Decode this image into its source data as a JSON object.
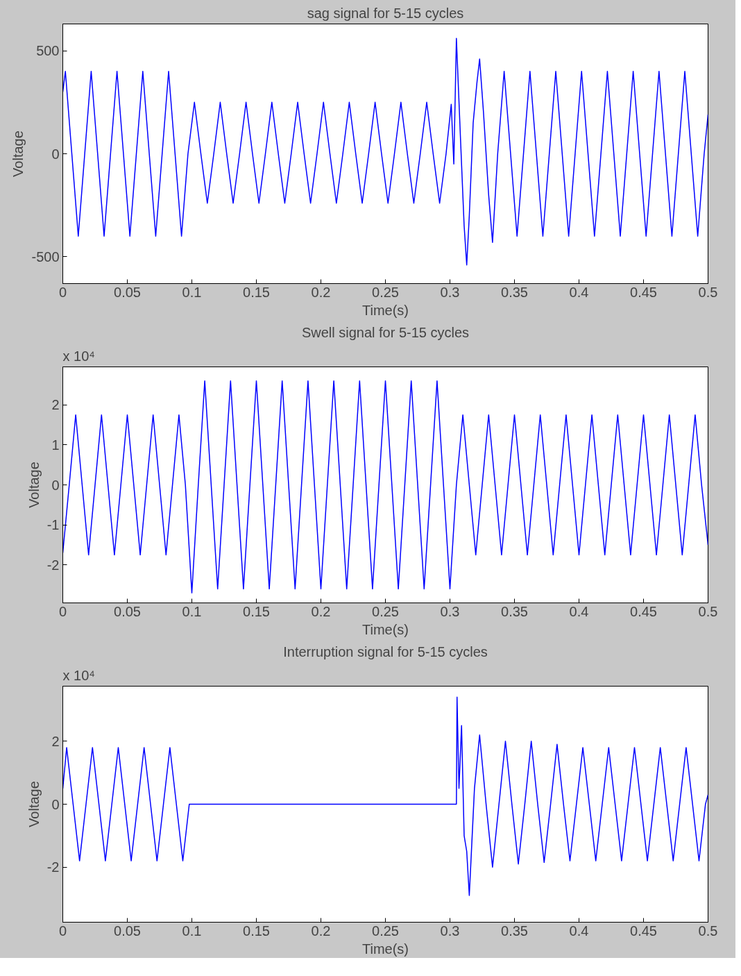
{
  "chart_data": [
    {
      "type": "line",
      "title": "sag signal for 5-15 cycles",
      "xlabel": "Time(s)",
      "ylabel": "Voltage",
      "grid": false,
      "xlim": [
        0,
        0.5
      ],
      "xticks": [
        0,
        0.05,
        0.1,
        0.15,
        0.2,
        0.25,
        0.3,
        0.35,
        0.4,
        0.45,
        0.5
      ],
      "ylim": [
        -630,
        630
      ],
      "yticks": [
        -500,
        0,
        500
      ],
      "x": [
        0,
        0.002,
        0.007,
        0.012,
        0.017,
        0.022,
        0.027,
        0.032,
        0.037,
        0.042,
        0.047,
        0.052,
        0.057,
        0.062,
        0.067,
        0.072,
        0.077,
        0.082,
        0.087,
        0.092,
        0.097,
        0.102,
        0.107,
        0.112,
        0.117,
        0.122,
        0.127,
        0.132,
        0.137,
        0.142,
        0.147,
        0.152,
        0.157,
        0.162,
        0.167,
        0.172,
        0.177,
        0.182,
        0.187,
        0.192,
        0.197,
        0.202,
        0.207,
        0.212,
        0.217,
        0.222,
        0.227,
        0.232,
        0.237,
        0.242,
        0.247,
        0.252,
        0.257,
        0.262,
        0.267,
        0.272,
        0.277,
        0.282,
        0.287,
        0.292,
        0.297,
        0.301,
        0.303,
        0.305,
        0.308,
        0.311,
        0.313,
        0.315,
        0.318,
        0.321,
        0.323,
        0.326,
        0.33,
        0.333,
        0.337,
        0.342,
        0.347,
        0.352,
        0.357,
        0.362,
        0.367,
        0.372,
        0.377,
        0.382,
        0.387,
        0.392,
        0.397,
        0.402,
        0.407,
        0.412,
        0.417,
        0.422,
        0.427,
        0.432,
        0.437,
        0.442,
        0.447,
        0.452,
        0.457,
        0.462,
        0.467,
        0.472,
        0.477,
        0.482,
        0.487,
        0.492,
        0.497,
        0.5
      ],
      "series": [
        {
          "color": "#0000ff",
          "values": [
            300,
            400,
            0,
            -400,
            0,
            400,
            0,
            -400,
            0,
            400,
            0,
            -400,
            0,
            400,
            0,
            -400,
            0,
            400,
            0,
            -400,
            0,
            250,
            0,
            -240,
            0,
            250,
            0,
            -240,
            0,
            250,
            0,
            -240,
            0,
            250,
            0,
            -240,
            0,
            250,
            0,
            -240,
            0,
            250,
            0,
            -240,
            0,
            250,
            0,
            -240,
            0,
            250,
            0,
            -240,
            0,
            250,
            0,
            -240,
            0,
            250,
            0,
            -240,
            0,
            240,
            -50,
            560,
            100,
            -350,
            -540,
            -300,
            150,
            350,
            460,
            200,
            -200,
            -430,
            0,
            400,
            0,
            -400,
            0,
            400,
            0,
            -400,
            0,
            400,
            0,
            -400,
            0,
            400,
            0,
            -400,
            0,
            400,
            0,
            -400,
            0,
            400,
            0,
            -400,
            0,
            400,
            0,
            -400,
            0,
            400,
            0,
            -400,
            0,
            190
          ]
        }
      ]
    },
    {
      "type": "line",
      "title": "Swell signal for 5-15 cycles",
      "xlabel": "Time(s)",
      "ylabel": "Voltage",
      "annotations": [
        "x 10⁴"
      ],
      "grid": false,
      "xlim": [
        0,
        0.5
      ],
      "xticks": [
        0,
        0.05,
        0.1,
        0.15,
        0.2,
        0.25,
        0.3,
        0.35,
        0.4,
        0.45,
        0.5
      ],
      "ylim": [
        -2.95,
        2.95
      ],
      "yticks": [
        -2,
        -1,
        0,
        1,
        2
      ],
      "x": [
        0,
        0.005,
        0.01,
        0.015,
        0.02,
        0.025,
        0.03,
        0.035,
        0.04,
        0.045,
        0.05,
        0.055,
        0.06,
        0.065,
        0.07,
        0.075,
        0.08,
        0.085,
        0.09,
        0.095,
        0.1,
        0.105,
        0.11,
        0.115,
        0.12,
        0.125,
        0.13,
        0.135,
        0.14,
        0.145,
        0.15,
        0.155,
        0.16,
        0.165,
        0.17,
        0.175,
        0.18,
        0.185,
        0.19,
        0.195,
        0.2,
        0.205,
        0.21,
        0.215,
        0.22,
        0.225,
        0.23,
        0.235,
        0.24,
        0.245,
        0.25,
        0.255,
        0.26,
        0.265,
        0.27,
        0.275,
        0.28,
        0.285,
        0.29,
        0.295,
        0.3,
        0.305,
        0.31,
        0.315,
        0.32,
        0.325,
        0.33,
        0.335,
        0.34,
        0.345,
        0.35,
        0.355,
        0.36,
        0.365,
        0.37,
        0.375,
        0.38,
        0.385,
        0.39,
        0.395,
        0.4,
        0.405,
        0.41,
        0.415,
        0.42,
        0.425,
        0.43,
        0.435,
        0.44,
        0.445,
        0.45,
        0.455,
        0.46,
        0.465,
        0.47,
        0.475,
        0.48,
        0.485,
        0.49,
        0.495,
        0.5
      ],
      "series": [
        {
          "color": "#0000ff",
          "values": [
            -1.7,
            0,
            1.75,
            0,
            -1.75,
            0,
            1.75,
            0,
            -1.75,
            0,
            1.75,
            0,
            -1.75,
            0,
            1.75,
            0,
            -1.75,
            0,
            1.75,
            0,
            -2.7,
            0,
            2.6,
            0,
            -2.6,
            0,
            2.6,
            0,
            -2.6,
            0,
            2.6,
            0,
            -2.6,
            0,
            2.6,
            0,
            -2.6,
            0,
            2.6,
            0,
            -2.6,
            0,
            2.6,
            0,
            -2.6,
            0,
            2.6,
            0,
            -2.6,
            0,
            2.6,
            0,
            -2.6,
            0,
            2.6,
            0,
            -2.6,
            0,
            2.6,
            0,
            -2.6,
            0,
            1.75,
            0,
            -1.75,
            0,
            1.75,
            0,
            -1.75,
            0,
            1.75,
            0,
            -1.75,
            0,
            1.75,
            0,
            -1.75,
            0,
            1.75,
            0,
            -1.75,
            0,
            1.75,
            0,
            -1.75,
            0,
            1.75,
            0,
            -1.75,
            0,
            1.75,
            0,
            -1.75,
            0,
            1.75,
            0,
            -1.75,
            0,
            1.75,
            0,
            -1.5
          ]
        }
      ]
    },
    {
      "type": "line",
      "title": "Interruption signal for 5-15 cycles",
      "xlabel": "Time(s)",
      "ylabel": "Voltage",
      "annotations": [
        "x 10⁴"
      ],
      "grid": false,
      "xlim": [
        0,
        0.5
      ],
      "xticks": [
        0,
        0.05,
        0.1,
        0.15,
        0.2,
        0.25,
        0.3,
        0.35,
        0.4,
        0.45,
        0.5
      ],
      "ylim": [
        -3.75,
        3.75
      ],
      "yticks": [
        -2,
        0,
        2
      ],
      "x": [
        0,
        0.003,
        0.008,
        0.013,
        0.018,
        0.023,
        0.028,
        0.033,
        0.038,
        0.043,
        0.048,
        0.053,
        0.058,
        0.063,
        0.068,
        0.073,
        0.078,
        0.083,
        0.088,
        0.093,
        0.098,
        0.305,
        0.3055,
        0.307,
        0.309,
        0.311,
        0.313,
        0.315,
        0.317,
        0.319,
        0.323,
        0.328,
        0.333,
        0.338,
        0.343,
        0.348,
        0.353,
        0.358,
        0.363,
        0.368,
        0.373,
        0.378,
        0.383,
        0.388,
        0.393,
        0.398,
        0.403,
        0.408,
        0.413,
        0.418,
        0.423,
        0.428,
        0.433,
        0.438,
        0.443,
        0.448,
        0.453,
        0.458,
        0.463,
        0.468,
        0.473,
        0.478,
        0.483,
        0.488,
        0.493,
        0.498,
        0.5
      ],
      "series": [
        {
          "color": "#0000ff",
          "values": [
            0.5,
            1.8,
            0,
            -1.8,
            0,
            1.8,
            0,
            -1.8,
            0,
            1.8,
            0,
            -1.8,
            0,
            1.8,
            0,
            -1.8,
            0,
            1.8,
            0,
            -1.8,
            0,
            0,
            3.4,
            0.5,
            2.5,
            -1,
            -1.5,
            -2.9,
            -1.2,
            0.5,
            2.2,
            0,
            -2,
            0,
            2,
            0,
            -1.9,
            0,
            2,
            0,
            -1.85,
            0,
            1.9,
            0,
            -1.8,
            0,
            1.8,
            0,
            -1.8,
            0,
            1.8,
            0,
            -1.8,
            0,
            1.8,
            0,
            -1.8,
            0,
            1.8,
            0,
            -1.8,
            0,
            1.8,
            0,
            -1.8,
            0,
            0.3
          ]
        }
      ]
    }
  ]
}
